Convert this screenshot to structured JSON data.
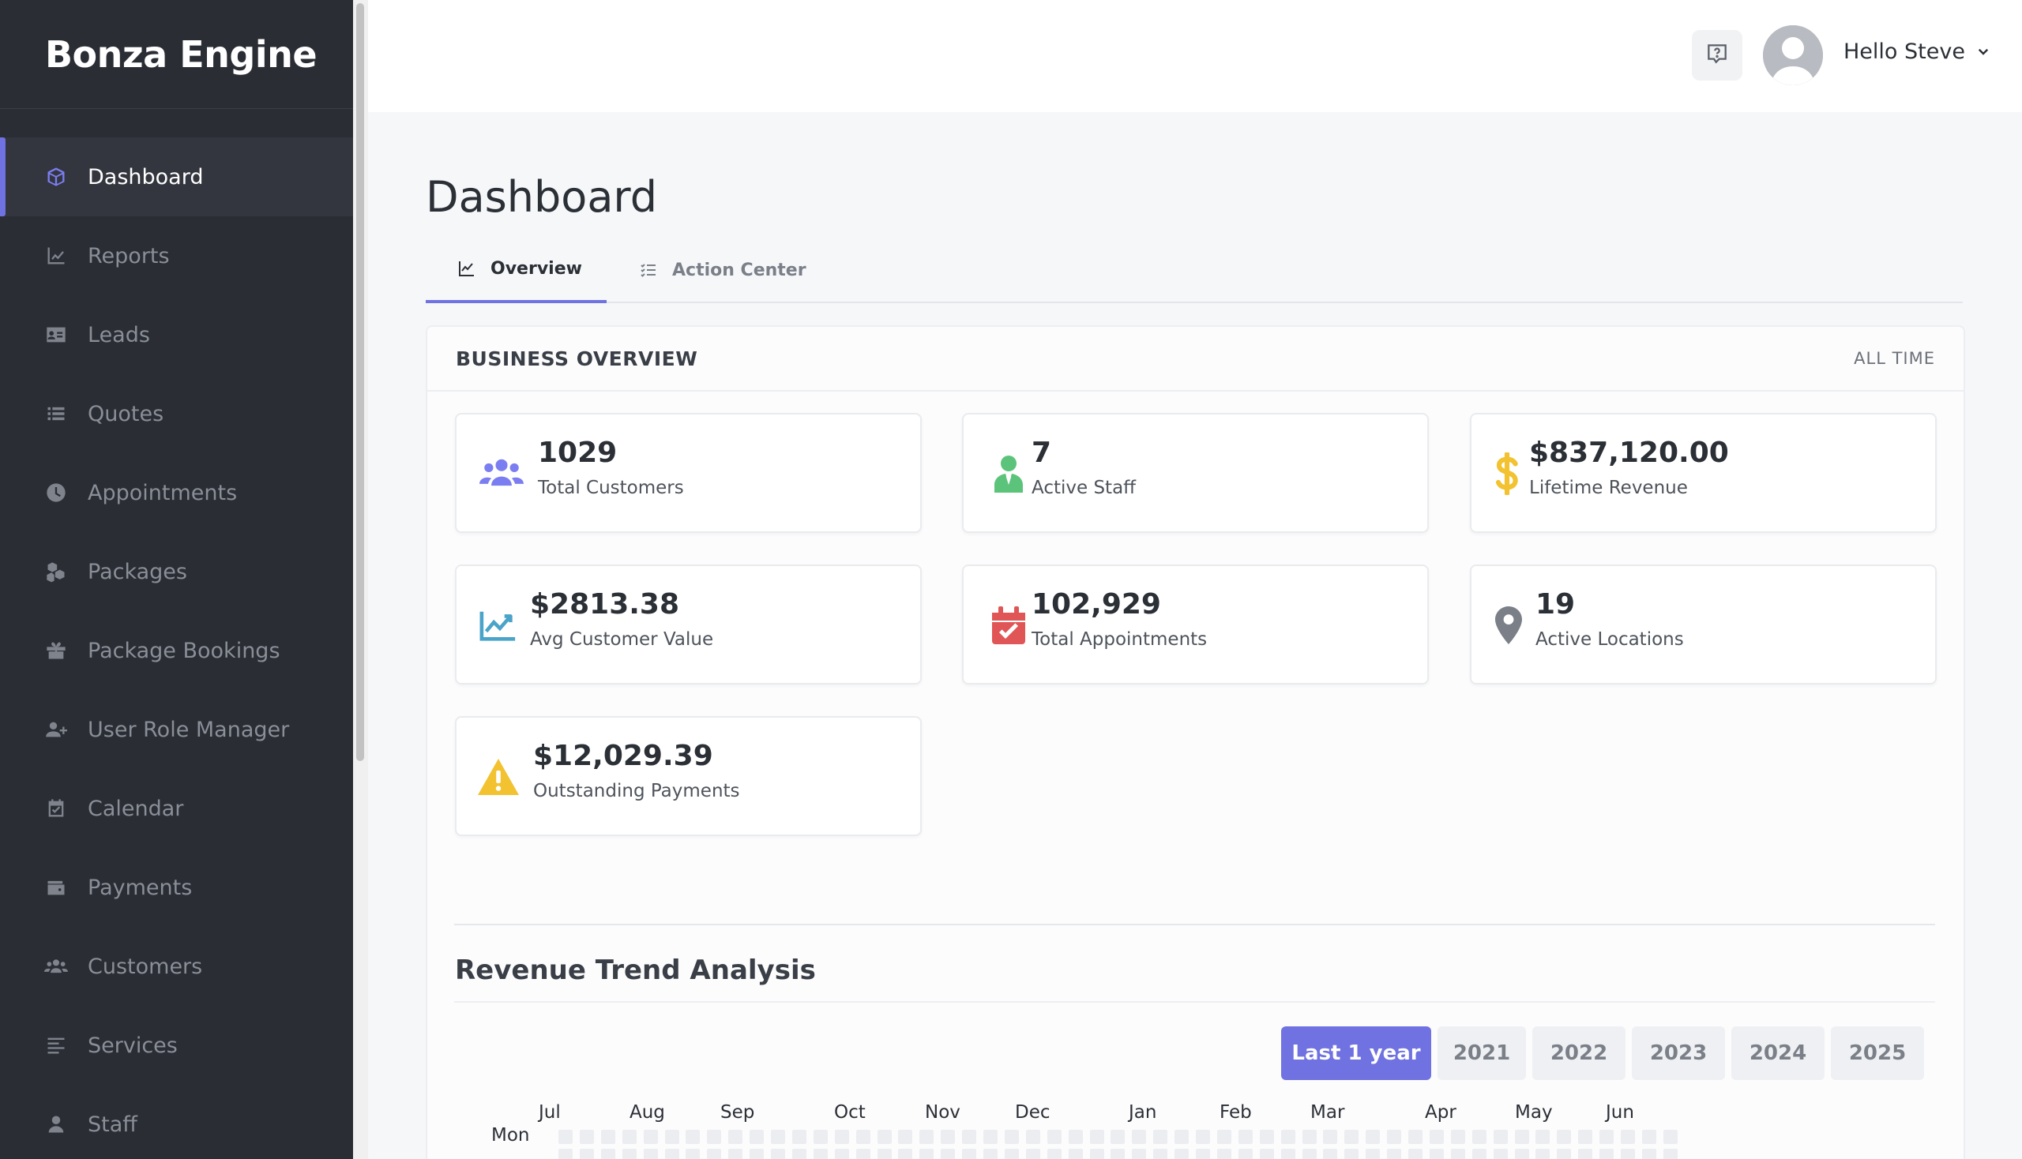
{
  "app": {
    "brand": "Bonza Engine"
  },
  "sidebar": {
    "items": [
      {
        "label": "Dashboard",
        "icon": "cube-icon",
        "active": true
      },
      {
        "label": "Reports",
        "icon": "line-chart-icon"
      },
      {
        "label": "Leads",
        "icon": "id-card-icon"
      },
      {
        "label": "Quotes",
        "icon": "list-icon"
      },
      {
        "label": "Appointments",
        "icon": "clock-icon"
      },
      {
        "label": "Packages",
        "icon": "boxes-icon"
      },
      {
        "label": "Package Bookings",
        "icon": "gift-box-icon"
      },
      {
        "label": "User Role Manager",
        "icon": "user-plus-icon"
      },
      {
        "label": "Calendar",
        "icon": "calendar-check-icon"
      },
      {
        "label": "Payments",
        "icon": "wallet-icon"
      },
      {
        "label": "Customers",
        "icon": "users-icon"
      },
      {
        "label": "Services",
        "icon": "align-left-icon"
      },
      {
        "label": "Staff",
        "icon": "user-icon"
      }
    ]
  },
  "header": {
    "greeting": "Hello Steve"
  },
  "page": {
    "title": "Dashboard",
    "tabs": [
      {
        "label": "Overview",
        "active": true
      },
      {
        "label": "Action Center",
        "active": false
      }
    ]
  },
  "overview": {
    "title": "BUSINESS OVERVIEW",
    "range": "ALL TIME",
    "cards": [
      {
        "value": "1029",
        "label": "Total Customers",
        "icon": "users-icon",
        "color": "#7b7ef0"
      },
      {
        "value": "7",
        "label": "Active Staff",
        "icon": "user-tie-icon",
        "color": "#5cc47a"
      },
      {
        "value": "$837,120.00",
        "label": "Lifetime Revenue",
        "icon": "dollar-icon",
        "color": "#f2c230"
      },
      {
        "value": "$2813.38",
        "label": "Avg Customer Value",
        "icon": "trend-up-icon",
        "color": "#4aa3c9"
      },
      {
        "value": "102,929",
        "label": "Total Appointments",
        "icon": "calendar-check-icon",
        "color": "#e05555"
      },
      {
        "value": "19",
        "label": "Active Locations",
        "icon": "map-pin-icon",
        "color": "#7a7f88"
      },
      {
        "value": "$12,029.39",
        "label": "Outstanding Payments",
        "icon": "warning-icon",
        "color": "#f2c230"
      }
    ]
  },
  "revenue": {
    "title": "Revenue Trend Analysis",
    "buttons": [
      {
        "label": "Last 1 year",
        "active": true
      },
      {
        "label": "2021"
      },
      {
        "label": "2022"
      },
      {
        "label": "2023"
      },
      {
        "label": "2024"
      },
      {
        "label": "2025"
      }
    ],
    "heatmap": {
      "months": [
        "Jul",
        "Aug",
        "Sep",
        "Oct",
        "Nov",
        "Dec",
        "Jan",
        "Feb",
        "Mar",
        "Apr",
        "May",
        "Jun"
      ],
      "day_label": "Mon"
    }
  },
  "colors": {
    "accent": "#6f72e0",
    "sidebar": "#2a2d34"
  }
}
